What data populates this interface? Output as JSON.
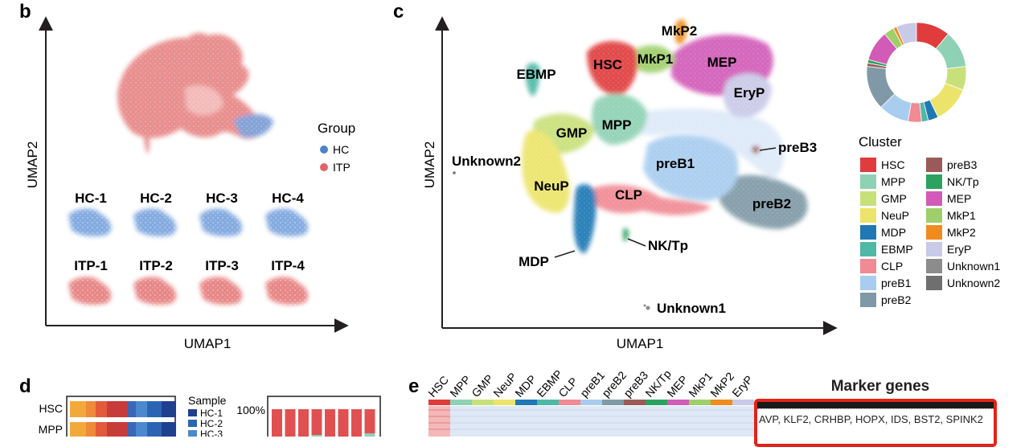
{
  "panels": {
    "b": {
      "label": "b",
      "xlabel": "UMAP1",
      "ylabel": "UMAP2",
      "legend": {
        "title": "Group",
        "items": [
          {
            "name": "HC",
            "color": "#4f81c7"
          },
          {
            "name": "ITP",
            "color": "#e06666"
          }
        ]
      },
      "samples_hc": [
        "HC-1",
        "HC-2",
        "HC-3",
        "HC-4"
      ],
      "samples_itp": [
        "ITP-1",
        "ITP-2",
        "ITP-3",
        "ITP-4"
      ]
    },
    "c": {
      "label": "c",
      "xlabel": "UMAP1",
      "ylabel": "UMAP2",
      "cluster_labels": [
        "HSC",
        "MkP2",
        "MkP1",
        "MEP",
        "EBMP",
        "EryP",
        "GMP",
        "MPP",
        "preB3",
        "Unknown2",
        "preB1",
        "NeuP",
        "CLP",
        "preB2",
        "MDP",
        "NK/Tp",
        "Unknown1"
      ],
      "legend_title": "Cluster",
      "legend_col1": [
        "HSC",
        "MPP",
        "GMP",
        "NeuP",
        "MDP",
        "EBMP",
        "CLP",
        "preB1",
        "preB2"
      ],
      "legend_col2": [
        "preB3",
        "NK/Tp",
        "MEP",
        "MkP1",
        "MkP2",
        "EryP",
        "Unknown1",
        "Unknown2"
      ]
    },
    "d": {
      "label": "d",
      "rows": [
        "HSC",
        "MPP"
      ],
      "sample_title": "Sample",
      "sample_items": [
        "HC-1",
        "HC-2",
        "HC-3"
      ],
      "y_tick": "100%"
    },
    "e": {
      "label": "e",
      "columns": [
        "HSC",
        "MPP",
        "GMP",
        "NeuP",
        "MDP",
        "EBMP",
        "CLP",
        "preB1",
        "preB2",
        "preB3",
        "NK/Tp",
        "MEP",
        "MkP1",
        "MkP2",
        "EryP"
      ],
      "marker_title": "Marker genes",
      "marker_text": "AVP, KLF2, CRHBP, HOPX, IDS, BST2, SPINK2"
    }
  },
  "cluster_colors": {
    "HSC": "#e03c3c",
    "MPP": "#8fd1b4",
    "GMP": "#c8e07a",
    "NeuP": "#ece46a",
    "MDP": "#1f78b4",
    "EBMP": "#4fb8a6",
    "CLP": "#f08a93",
    "preB1": "#a8cdef",
    "preB2": "#7f9aa6",
    "preB3": "#9b5a5a",
    "NK/Tp": "#2ca25f",
    "MEP": "#d25bb8",
    "MkP1": "#9fcf6a",
    "MkP2": "#f08c1e",
    "EryP": "#c9c9e8",
    "Unknown1": "#8c8c8c",
    "Unknown2": "#6f6f6f"
  },
  "chart_data": [
    {
      "type": "pie",
      "title": "",
      "categories": [
        "HSC",
        "MPP",
        "GMP",
        "NeuP",
        "MDP",
        "EBMP",
        "CLP",
        "preB1",
        "preB2",
        "preB3",
        "NK/Tp",
        "MEP",
        "MkP1",
        "MkP2",
        "EryP"
      ],
      "values": [
        10,
        11,
        7,
        11,
        3,
        2,
        4,
        9,
        13,
        1,
        1,
        9,
        3,
        1,
        6
      ]
    }
  ]
}
